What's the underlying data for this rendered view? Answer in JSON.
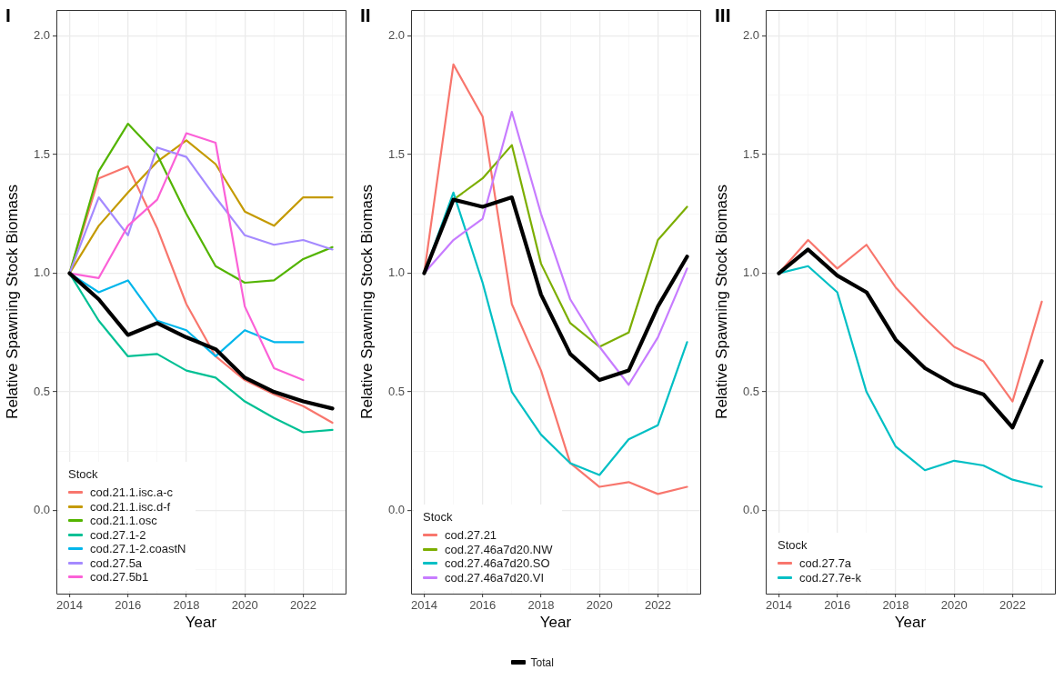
{
  "chart_data": [
    {
      "type": "line",
      "title": "I",
      "xlabel": "Year",
      "ylabel": "Relative Spawning Stock Biomass",
      "legend_title": "Stock",
      "legend": "bottom left",
      "grid": true,
      "x": [
        2014,
        2015,
        2016,
        2017,
        2018,
        2019,
        2020,
        2021,
        2022,
        2023
      ],
      "xlim": [
        2013.55,
        2023.45
      ],
      "xticks": [
        2014,
        {
          "value": 2015,
          "label": null
        },
        2016,
        {
          "value": 2017,
          "label": null
        },
        2018,
        {
          "value": 2019,
          "label": null
        },
        2020,
        {
          "value": 2021,
          "label": null
        },
        2022,
        {
          "value": 2023,
          "label": null
        }
      ],
      "ylim": [
        -0.35,
        2.11
      ],
      "yticks": [
        {
          "value": -0.25,
          "label": null
        },
        {
          "value": 0,
          "label": "0.0"
        },
        {
          "value": 0.25,
          "label": null
        },
        {
          "value": 0.5,
          "label": "0.5"
        },
        {
          "value": 0.75,
          "label": null
        },
        {
          "value": 1,
          "label": "1.0"
        },
        {
          "value": 1.25,
          "label": null
        },
        {
          "value": 1.5,
          "label": "1.5"
        },
        {
          "value": 1.75,
          "label": null
        },
        {
          "value": 2,
          "label": "2.0"
        }
      ],
      "series": [
        {
          "name": "cod.21.1.isc.a-c",
          "color": "#f8766d",
          "values": [
            1.0,
            1.4,
            1.45,
            1.19,
            0.87,
            0.65,
            0.55,
            0.49,
            0.44,
            0.37
          ]
        },
        {
          "name": "cod.21.1.isc.d-f",
          "color": "#c49a00",
          "values": [
            1.0,
            1.2,
            1.34,
            1.47,
            1.56,
            1.46,
            1.26,
            1.2,
            1.32,
            1.32
          ]
        },
        {
          "name": "cod.21.1.osc",
          "color": "#53b400",
          "values": [
            1.0,
            1.43,
            1.63,
            1.5,
            1.25,
            1.03,
            0.96,
            0.97,
            1.06,
            1.11
          ]
        },
        {
          "name": "cod.27.1-2",
          "color": "#00c094",
          "values": [
            1.0,
            0.8,
            0.65,
            0.66,
            0.59,
            0.56,
            0.46,
            0.39,
            0.33,
            0.34
          ]
        },
        {
          "name": "cod.27.1-2.coastN",
          "color": "#00b6eb",
          "values": [
            1.0,
            0.92,
            0.97,
            0.8,
            0.76,
            0.65,
            0.76,
            0.71,
            0.71,
            null
          ]
        },
        {
          "name": "cod.27.5a",
          "color": "#a58aff",
          "values": [
            1.0,
            1.32,
            1.16,
            1.53,
            1.49,
            1.32,
            1.16,
            1.12,
            1.14,
            1.1
          ]
        },
        {
          "name": "cod.27.5b1",
          "color": "#fb61d7",
          "values": [
            1.0,
            0.98,
            1.2,
            1.31,
            1.59,
            1.55,
            0.86,
            0.6,
            0.55,
            null
          ]
        },
        {
          "color": "#000000",
          "values": [
            1.0,
            0.89,
            0.74,
            0.79,
            0.73,
            0.68,
            0.56,
            0.5,
            0.46,
            0.43
          ]
        }
      ]
    },
    {
      "type": "line",
      "title": "II",
      "xlabel": "Year",
      "ylabel": "Relative Spawning Stock Biomass",
      "legend_title": "Stock",
      "legend": "bottom left",
      "grid": true,
      "x": [
        2014,
        2015,
        2016,
        2017,
        2018,
        2019,
        2020,
        2021,
        2022,
        2023
      ],
      "xlim": [
        2013.55,
        2023.45
      ],
      "xticks": [
        2014,
        {
          "value": 2015,
          "label": null
        },
        2016,
        {
          "value": 2017,
          "label": null
        },
        2018,
        {
          "value": 2019,
          "label": null
        },
        2020,
        {
          "value": 2021,
          "label": null
        },
        2022,
        {
          "value": 2023,
          "label": null
        }
      ],
      "ylim": [
        -0.35,
        2.11
      ],
      "yticks": [
        {
          "value": -0.25,
          "label": null
        },
        {
          "value": 0,
          "label": "0.0"
        },
        {
          "value": 0.25,
          "label": null
        },
        {
          "value": 0.5,
          "label": "0.5"
        },
        {
          "value": 0.75,
          "label": null
        },
        {
          "value": 1,
          "label": "1.0"
        },
        {
          "value": 1.25,
          "label": null
        },
        {
          "value": 1.5,
          "label": "1.5"
        },
        {
          "value": 1.75,
          "label": null
        },
        {
          "value": 2,
          "label": "2.0"
        }
      ],
      "series": [
        {
          "name": "cod.27.21",
          "color": "#f8766d",
          "values": [
            1.0,
            1.88,
            1.66,
            0.87,
            0.59,
            0.2,
            0.1,
            0.12,
            0.07,
            0.1
          ]
        },
        {
          "name": "cod.27.46a7d20.NW",
          "color": "#7cae00",
          "values": [
            1.0,
            1.31,
            1.4,
            1.54,
            1.04,
            0.79,
            0.69,
            0.75,
            1.14,
            1.28
          ]
        },
        {
          "name": "cod.27.46a7d20.SO",
          "color": "#00bfc4",
          "values": [
            1.0,
            1.34,
            0.96,
            0.5,
            0.32,
            0.2,
            0.15,
            0.3,
            0.36,
            0.71
          ]
        },
        {
          "name": "cod.27.46a7d20.VI",
          "color": "#c77cff",
          "values": [
            1.0,
            1.14,
            1.23,
            1.68,
            1.25,
            0.89,
            0.69,
            0.53,
            0.73,
            1.02
          ]
        },
        {
          "name": "Total",
          "color": "#000000",
          "values": [
            1.0,
            1.31,
            1.28,
            1.32,
            0.91,
            0.66,
            0.55,
            0.59,
            0.86,
            1.07
          ]
        }
      ]
    },
    {
      "type": "line",
      "title": "III",
      "xlabel": "Year",
      "ylabel": "Relative Spawning Stock Biomass",
      "legend_title": "Stock",
      "legend": "bottom left",
      "grid": true,
      "x": [
        2014,
        2015,
        2016,
        2017,
        2018,
        2019,
        2020,
        2021,
        2022,
        2023
      ],
      "xlim": [
        2013.55,
        2023.45
      ],
      "xticks": [
        2014,
        {
          "value": 2015,
          "label": null
        },
        2016,
        {
          "value": 2017,
          "label": null
        },
        2018,
        {
          "value": 2019,
          "label": null
        },
        2020,
        {
          "value": 2021,
          "label": null
        },
        2022,
        {
          "value": 2023,
          "label": null
        }
      ],
      "ylim": [
        -0.35,
        2.11
      ],
      "yticks": [
        {
          "value": -0.25,
          "label": null
        },
        {
          "value": 0,
          "label": "0.0"
        },
        {
          "value": 0.25,
          "label": null
        },
        {
          "value": 0.5,
          "label": "0.5"
        },
        {
          "value": 0.75,
          "label": null
        },
        {
          "value": 1,
          "label": "1.0"
        },
        {
          "value": 1.25,
          "label": null
        },
        {
          "value": 1.5,
          "label": "1.5"
        },
        {
          "value": 1.75,
          "label": null
        },
        {
          "value": 2,
          "label": "2.0"
        }
      ],
      "series": [
        {
          "name": "cod.27.7a",
          "color": "#f8766d",
          "values": [
            1.0,
            1.14,
            1.02,
            1.12,
            0.94,
            0.81,
            0.69,
            0.63,
            0.46,
            0.88
          ]
        },
        {
          "name": "cod.27.7e-k",
          "color": "#00bfc4",
          "values": [
            1.0,
            1.03,
            0.92,
            0.5,
            0.27,
            0.17,
            0.21,
            0.19,
            0.13,
            0.1
          ]
        },
        {
          "color": "#000000",
          "values": [
            1.0,
            1.1,
            0.99,
            0.92,
            0.72,
            0.6,
            0.53,
            0.49,
            0.35,
            0.63
          ]
        }
      ]
    }
  ]
}
